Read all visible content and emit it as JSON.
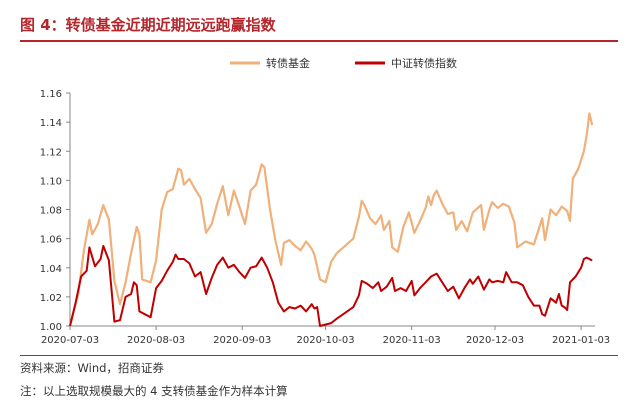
{
  "header": {
    "title": "图 4：转债基金近期近期远远跑赢指数"
  },
  "footer": {
    "source": "资料来源：Wind，招商证券",
    "note": "注：以上选取规模最大的 4 支转债基金作为样本计算"
  },
  "chart_data": {
    "type": "line",
    "title": "",
    "xlabel": "",
    "ylabel": "",
    "ylim": [
      1.0,
      1.16
    ],
    "y_ticks": [
      "1.00",
      "1.02",
      "1.04",
      "1.06",
      "1.08",
      "1.10",
      "1.12",
      "1.14",
      "1.16"
    ],
    "x_ticks": [
      "2020-07-03",
      "2020-08-03",
      "2020-09-03",
      "2020-10-03",
      "2020-11-03",
      "2020-12-03",
      "2021-01-03"
    ],
    "xlim": [
      "2020-07-03",
      "2021-01-08"
    ],
    "grid": false,
    "legend_position": "top-center",
    "series": [
      {
        "name": "转债基金",
        "color": "#f0b07a",
        "points": [
          [
            "2020-07-03",
            1.0
          ],
          [
            "2020-07-06",
            1.022
          ],
          [
            "2020-07-08",
            1.052
          ],
          [
            "2020-07-10",
            1.073
          ],
          [
            "2020-07-11",
            1.063
          ],
          [
            "2020-07-13",
            1.07
          ],
          [
            "2020-07-15",
            1.083
          ],
          [
            "2020-07-17",
            1.073
          ],
          [
            "2020-07-19",
            1.031
          ],
          [
            "2020-07-21",
            1.015
          ],
          [
            "2020-07-23",
            1.03
          ],
          [
            "2020-07-25",
            1.05
          ],
          [
            "2020-07-27",
            1.068
          ],
          [
            "2020-07-28",
            1.063
          ],
          [
            "2020-07-29",
            1.032
          ],
          [
            "2020-08-01",
            1.03
          ],
          [
            "2020-08-03",
            1.045
          ],
          [
            "2020-08-05",
            1.08
          ],
          [
            "2020-08-07",
            1.092
          ],
          [
            "2020-08-09",
            1.094
          ],
          [
            "2020-08-11",
            1.108
          ],
          [
            "2020-08-12",
            1.107
          ],
          [
            "2020-08-13",
            1.097
          ],
          [
            "2020-08-15",
            1.101
          ],
          [
            "2020-08-17",
            1.094
          ],
          [
            "2020-08-19",
            1.088
          ],
          [
            "2020-08-21",
            1.064
          ],
          [
            "2020-08-23",
            1.07
          ],
          [
            "2020-08-25",
            1.084
          ],
          [
            "2020-08-27",
            1.096
          ],
          [
            "2020-08-29",
            1.076
          ],
          [
            "2020-08-31",
            1.093
          ],
          [
            "2020-09-02",
            1.082
          ],
          [
            "2020-09-04",
            1.07
          ],
          [
            "2020-09-06",
            1.093
          ],
          [
            "2020-09-08",
            1.097
          ],
          [
            "2020-09-10",
            1.111
          ],
          [
            "2020-09-11",
            1.109
          ],
          [
            "2020-09-13",
            1.08
          ],
          [
            "2020-09-15",
            1.058
          ],
          [
            "2020-09-17",
            1.042
          ],
          [
            "2020-09-18",
            1.057
          ],
          [
            "2020-09-20",
            1.059
          ],
          [
            "2020-09-22",
            1.055
          ],
          [
            "2020-09-24",
            1.052
          ],
          [
            "2020-09-26",
            1.058
          ],
          [
            "2020-09-28",
            1.053
          ],
          [
            "2020-09-29",
            1.049
          ],
          [
            "2020-10-01",
            1.032
          ],
          [
            "2020-10-03",
            1.03
          ],
          [
            "2020-10-05",
            1.044
          ],
          [
            "2020-10-07",
            1.05
          ],
          [
            "2020-10-10",
            1.055
          ],
          [
            "2020-10-13",
            1.06
          ],
          [
            "2020-10-15",
            1.075
          ],
          [
            "2020-10-16",
            1.086
          ],
          [
            "2020-10-17",
            1.083
          ],
          [
            "2020-10-19",
            1.074
          ],
          [
            "2020-10-21",
            1.07
          ],
          [
            "2020-10-23",
            1.076
          ],
          [
            "2020-10-24",
            1.066
          ],
          [
            "2020-10-26",
            1.072
          ],
          [
            "2020-10-27",
            1.054
          ],
          [
            "2020-10-29",
            1.051
          ],
          [
            "2020-10-31",
            1.068
          ],
          [
            "2020-11-02",
            1.078
          ],
          [
            "2020-11-04",
            1.064
          ],
          [
            "2020-11-06",
            1.072
          ],
          [
            "2020-11-08",
            1.081
          ],
          [
            "2020-11-09",
            1.089
          ],
          [
            "2020-11-10",
            1.083
          ],
          [
            "2020-11-11",
            1.09
          ],
          [
            "2020-11-12",
            1.093
          ],
          [
            "2020-11-14",
            1.084
          ],
          [
            "2020-11-16",
            1.077
          ],
          [
            "2020-11-18",
            1.078
          ],
          [
            "2020-11-19",
            1.066
          ],
          [
            "2020-11-21",
            1.072
          ],
          [
            "2020-11-23",
            1.065
          ],
          [
            "2020-11-25",
            1.078
          ],
          [
            "2020-11-28",
            1.083
          ],
          [
            "2020-11-29",
            1.066
          ],
          [
            "2020-12-01",
            1.08
          ],
          [
            "2020-12-02",
            1.085
          ],
          [
            "2020-12-04",
            1.081
          ],
          [
            "2020-12-06",
            1.084
          ],
          [
            "2020-12-08",
            1.082
          ],
          [
            "2020-12-10",
            1.071
          ],
          [
            "2020-12-11",
            1.054
          ],
          [
            "2020-12-14",
            1.058
          ],
          [
            "2020-12-17",
            1.056
          ],
          [
            "2020-12-19",
            1.068
          ],
          [
            "2020-12-20",
            1.074
          ],
          [
            "2020-12-21",
            1.059
          ],
          [
            "2020-12-23",
            1.08
          ],
          [
            "2020-12-25",
            1.076
          ],
          [
            "2020-12-27",
            1.082
          ],
          [
            "2020-12-29",
            1.079
          ],
          [
            "2020-12-30",
            1.072
          ],
          [
            "2020-12-31",
            1.101
          ],
          [
            "2021-01-02",
            1.108
          ],
          [
            "2021-01-04",
            1.12
          ],
          [
            "2021-01-05",
            1.131
          ],
          [
            "2021-01-06",
            1.146
          ],
          [
            "2021-01-07",
            1.138
          ]
        ]
      },
      {
        "name": "中证转债指数",
        "color": "#c00000",
        "points": [
          [
            "2020-07-03",
            1.0
          ],
          [
            "2020-07-05",
            1.016
          ],
          [
            "2020-07-07",
            1.034
          ],
          [
            "2020-07-09",
            1.038
          ],
          [
            "2020-07-10",
            1.054
          ],
          [
            "2020-07-12",
            1.041
          ],
          [
            "2020-07-14",
            1.046
          ],
          [
            "2020-07-15",
            1.055
          ],
          [
            "2020-07-17",
            1.045
          ],
          [
            "2020-07-19",
            1.003
          ],
          [
            "2020-07-21",
            1.004
          ],
          [
            "2020-07-23",
            1.02
          ],
          [
            "2020-07-25",
            1.022
          ],
          [
            "2020-07-26",
            1.03
          ],
          [
            "2020-07-27",
            1.028
          ],
          [
            "2020-07-28",
            1.01
          ],
          [
            "2020-07-30",
            1.008
          ],
          [
            "2020-08-01",
            1.006
          ],
          [
            "2020-08-03",
            1.026
          ],
          [
            "2020-08-05",
            1.031
          ],
          [
            "2020-08-07",
            1.038
          ],
          [
            "2020-08-09",
            1.044
          ],
          [
            "2020-08-10",
            1.049
          ],
          [
            "2020-08-11",
            1.046
          ],
          [
            "2020-08-13",
            1.046
          ],
          [
            "2020-08-15",
            1.043
          ],
          [
            "2020-08-17",
            1.034
          ],
          [
            "2020-08-19",
            1.037
          ],
          [
            "2020-08-21",
            1.022
          ],
          [
            "2020-08-23",
            1.033
          ],
          [
            "2020-08-25",
            1.042
          ],
          [
            "2020-08-27",
            1.047
          ],
          [
            "2020-08-29",
            1.04
          ],
          [
            "2020-08-31",
            1.042
          ],
          [
            "2020-09-02",
            1.037
          ],
          [
            "2020-09-04",
            1.033
          ],
          [
            "2020-09-06",
            1.04
          ],
          [
            "2020-09-08",
            1.041
          ],
          [
            "2020-09-10",
            1.047
          ],
          [
            "2020-09-12",
            1.04
          ],
          [
            "2020-09-14",
            1.03
          ],
          [
            "2020-09-16",
            1.016
          ],
          [
            "2020-09-18",
            1.01
          ],
          [
            "2020-09-20",
            1.013
          ],
          [
            "2020-09-22",
            1.012
          ],
          [
            "2020-09-24",
            1.014
          ],
          [
            "2020-09-26",
            1.01
          ],
          [
            "2020-09-28",
            1.015
          ],
          [
            "2020-09-29",
            1.012
          ],
          [
            "2020-09-30",
            1.013
          ],
          [
            "2020-10-01",
            1.0
          ],
          [
            "2020-10-05",
            1.002
          ],
          [
            "2020-10-07",
            1.005
          ],
          [
            "2020-10-10",
            1.009
          ],
          [
            "2020-10-13",
            1.013
          ],
          [
            "2020-10-15",
            1.021
          ],
          [
            "2020-10-16",
            1.031
          ],
          [
            "2020-10-18",
            1.029
          ],
          [
            "2020-10-20",
            1.026
          ],
          [
            "2020-10-22",
            1.03
          ],
          [
            "2020-10-23",
            1.024
          ],
          [
            "2020-10-25",
            1.027
          ],
          [
            "2020-10-27",
            1.033
          ],
          [
            "2020-10-28",
            1.024
          ],
          [
            "2020-10-30",
            1.026
          ],
          [
            "2020-11-01",
            1.024
          ],
          [
            "2020-11-03",
            1.031
          ],
          [
            "2020-11-04",
            1.021
          ],
          [
            "2020-11-06",
            1.026
          ],
          [
            "2020-11-08",
            1.03
          ],
          [
            "2020-11-10",
            1.034
          ],
          [
            "2020-11-12",
            1.036
          ],
          [
            "2020-11-14",
            1.03
          ],
          [
            "2020-11-16",
            1.024
          ],
          [
            "2020-11-18",
            1.027
          ],
          [
            "2020-11-20",
            1.019
          ],
          [
            "2020-11-22",
            1.026
          ],
          [
            "2020-11-24",
            1.032
          ],
          [
            "2020-11-25",
            1.029
          ],
          [
            "2020-11-27",
            1.034
          ],
          [
            "2020-11-29",
            1.025
          ],
          [
            "2020-12-01",
            1.032
          ],
          [
            "2020-12-02",
            1.03
          ],
          [
            "2020-12-04",
            1.031
          ],
          [
            "2020-12-06",
            1.03
          ],
          [
            "2020-12-07",
            1.037
          ],
          [
            "2020-12-09",
            1.03
          ],
          [
            "2020-12-11",
            1.03
          ],
          [
            "2020-12-13",
            1.028
          ],
          [
            "2020-12-15",
            1.02
          ],
          [
            "2020-12-17",
            1.014
          ],
          [
            "2020-12-19",
            1.014
          ],
          [
            "2020-12-20",
            1.008
          ],
          [
            "2020-12-21",
            1.007
          ],
          [
            "2020-12-23",
            1.019
          ],
          [
            "2020-12-25",
            1.016
          ],
          [
            "2020-12-26",
            1.022
          ],
          [
            "2020-12-27",
            1.014
          ],
          [
            "2020-12-28",
            1.013
          ],
          [
            "2020-12-29",
            1.011
          ],
          [
            "2020-12-30",
            1.03
          ],
          [
            "2021-01-01",
            1.034
          ],
          [
            "2021-01-03",
            1.04
          ],
          [
            "2021-01-04",
            1.046
          ],
          [
            "2021-01-05",
            1.047
          ],
          [
            "2021-01-07",
            1.045
          ]
        ]
      }
    ]
  }
}
